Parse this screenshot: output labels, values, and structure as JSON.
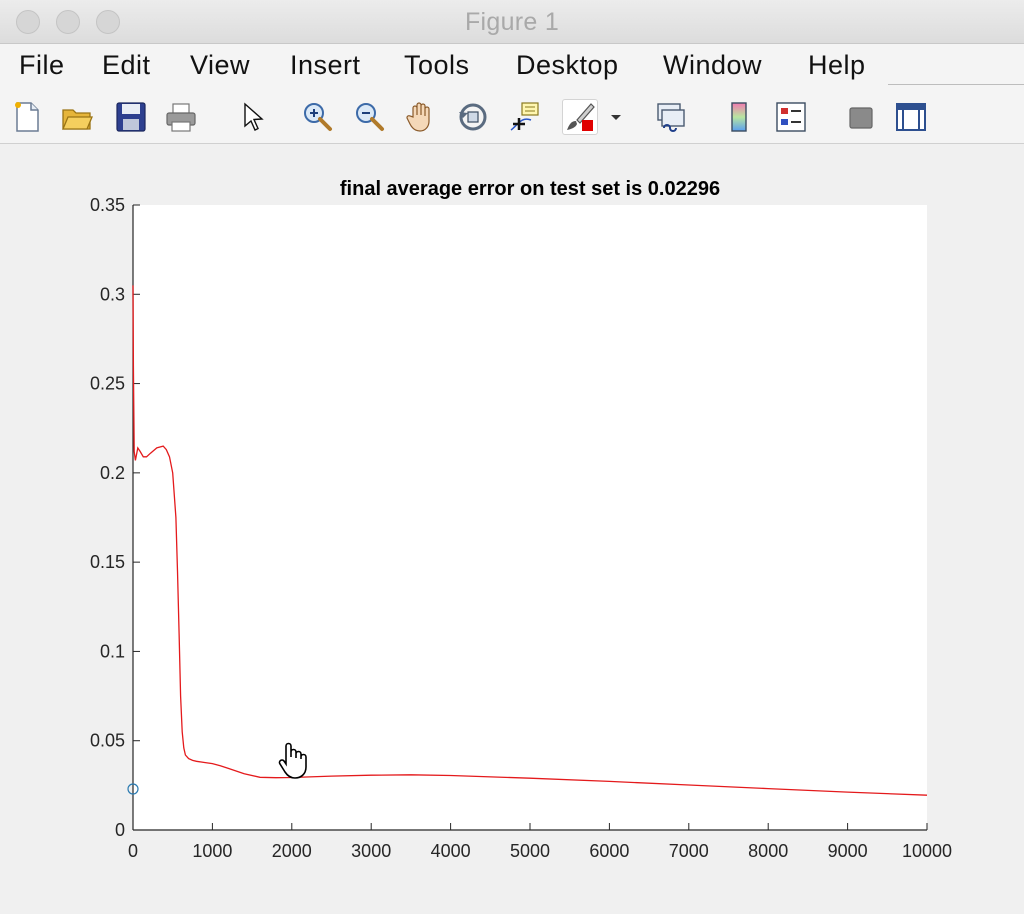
{
  "window": {
    "title": "Figure 1"
  },
  "menu": {
    "items": [
      "File",
      "Edit",
      "View",
      "Insert",
      "Tools",
      "Desktop",
      "Window",
      "Help"
    ]
  },
  "toolbar": {
    "icons": [
      "new-figure-icon",
      "open-file-icon",
      "save-icon",
      "print-icon",
      "pointer-icon",
      "zoom-in-icon",
      "zoom-out-icon",
      "pan-hand-icon",
      "rotate-3d-icon",
      "data-cursor-icon",
      "brush-icon",
      "brush-dropdown-icon",
      "link-plot-icon",
      "colorbar-icon",
      "legend-icon",
      "hide-plot-tools-icon",
      "show-plot-tools-icon"
    ]
  },
  "colors": {
    "line": "#e41a1c",
    "marker": "#2a7ab0",
    "axes_bg": "#ffffff",
    "figure_bg": "#f0f0f0"
  },
  "chart_data": {
    "type": "line",
    "title": "final average error on test set is 0.02296",
    "xlabel": "",
    "ylabel": "",
    "xlim": [
      0,
      10000
    ],
    "ylim": [
      0,
      0.35
    ],
    "xticks": [
      0,
      1000,
      2000,
      3000,
      4000,
      5000,
      6000,
      7000,
      8000,
      9000,
      10000
    ],
    "yticks": [
      0,
      0.05,
      0.1,
      0.15,
      0.2,
      0.25,
      0.3,
      0.35
    ],
    "xtick_labels": [
      "0",
      "1000",
      "2000",
      "3000",
      "4000",
      "5000",
      "6000",
      "7000",
      "8000",
      "9000",
      "10000"
    ],
    "ytick_labels": [
      "0",
      "0.05",
      "0.1",
      "0.15",
      "0.2",
      "0.25",
      "0.3",
      "0.35"
    ],
    "grid": false,
    "series": [
      {
        "x": [
          0,
          5,
          15,
          30,
          60,
          90,
          130,
          170,
          220,
          300,
          380,
          420,
          460,
          500,
          540,
          560,
          580,
          600,
          620,
          640,
          660,
          700,
          750,
          800,
          900,
          1000,
          1100,
          1200,
          1400,
          1600,
          1800,
          2000,
          2500,
          3000,
          3500,
          4000,
          5000,
          6000,
          7000,
          8000,
          9000,
          10000
        ],
        "y": [
          0.305,
          0.26,
          0.212,
          0.207,
          0.214,
          0.212,
          0.209,
          0.209,
          0.211,
          0.214,
          0.215,
          0.213,
          0.209,
          0.2,
          0.175,
          0.145,
          0.11,
          0.075,
          0.055,
          0.046,
          0.042,
          0.04,
          0.039,
          0.0385,
          0.0378,
          0.0372,
          0.036,
          0.0345,
          0.0315,
          0.0295,
          0.0293,
          0.0294,
          0.0302,
          0.0307,
          0.0309,
          0.0305,
          0.029,
          0.0272,
          0.0252,
          0.0232,
          0.0212,
          0.0195
        ]
      },
      {
        "type": "scatter",
        "x": [
          0
        ],
        "y": [
          0.02296
        ]
      }
    ]
  }
}
